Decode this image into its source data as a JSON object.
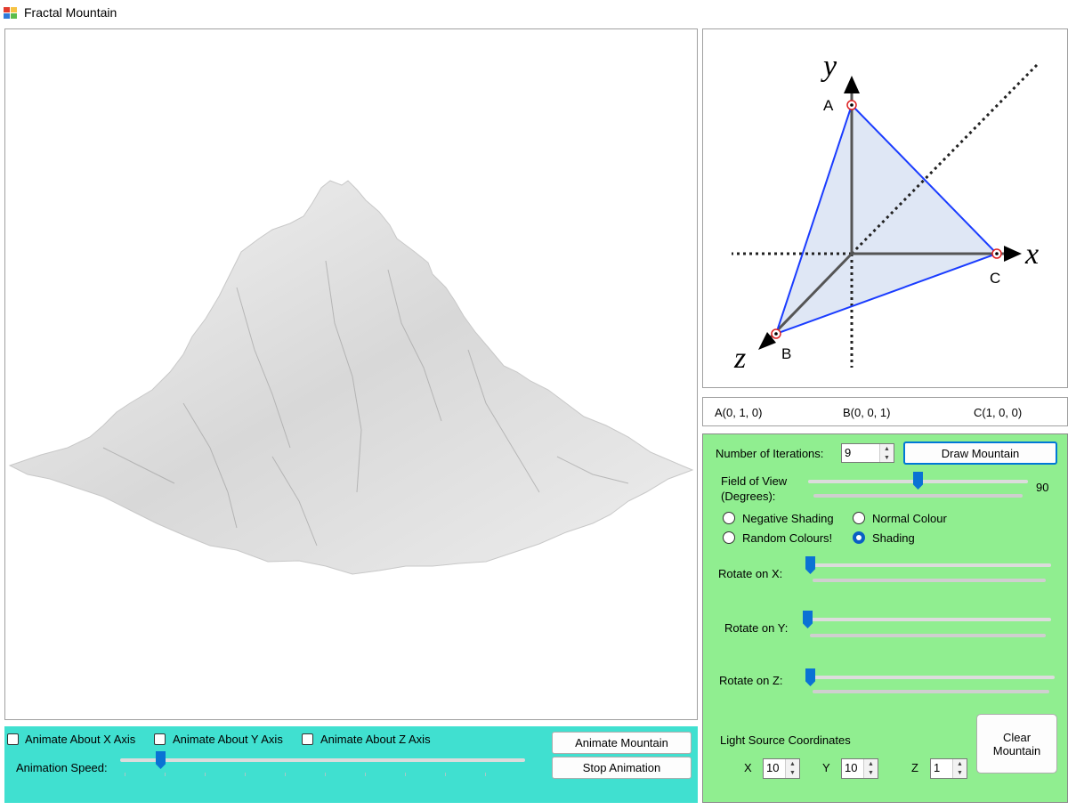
{
  "window": {
    "title": "Fractal Mountain"
  },
  "diagram": {
    "axis_x": "x",
    "axis_y": "y",
    "axis_z": "z",
    "point_a": "A",
    "point_b": "B",
    "point_c": "C"
  },
  "coords": {
    "a": "A(0, 1, 0)",
    "b": "B(0, 0, 1)",
    "c": "C(1, 0, 0)"
  },
  "animation": {
    "x_label": "Animate About X Axis",
    "x_checked": false,
    "y_label": "Animate About Y Axis",
    "y_checked": false,
    "z_label": "Animate About Z Axis",
    "z_checked": false,
    "speed_label": "Animation Speed:",
    "animate_button": "Animate Mountain",
    "stop_button": "Stop Animation"
  },
  "controls": {
    "iterations_label": "Number of Iterations:",
    "iterations_value": "9",
    "draw_button": "Draw Mountain",
    "fov_label_1": "Field of View",
    "fov_label_2": "(Degrees):",
    "fov_value": "90",
    "shading_options": {
      "negative": "Negative Shading",
      "normal": "Normal Colour",
      "random": "Random Colours!",
      "shading": "Shading",
      "selected": "Shading"
    },
    "rotate_x_label": "Rotate on X:",
    "rotate_y_label": "Rotate on Y:",
    "rotate_z_label": "Rotate on Z:",
    "light_label": "Light Source Coordinates",
    "light_x_label": "X",
    "light_x_value": "10",
    "light_y_label": "Y",
    "light_y_value": "10",
    "light_z_label": "Z",
    "light_z_value": "1",
    "clear_button_1": "Clear",
    "clear_button_2": "Mountain"
  },
  "colors": {
    "teal_panel": "#40e0d0",
    "green_panel": "#90ee90",
    "accent": "#0a72d4",
    "triangle_edge": "#1a3cff"
  }
}
